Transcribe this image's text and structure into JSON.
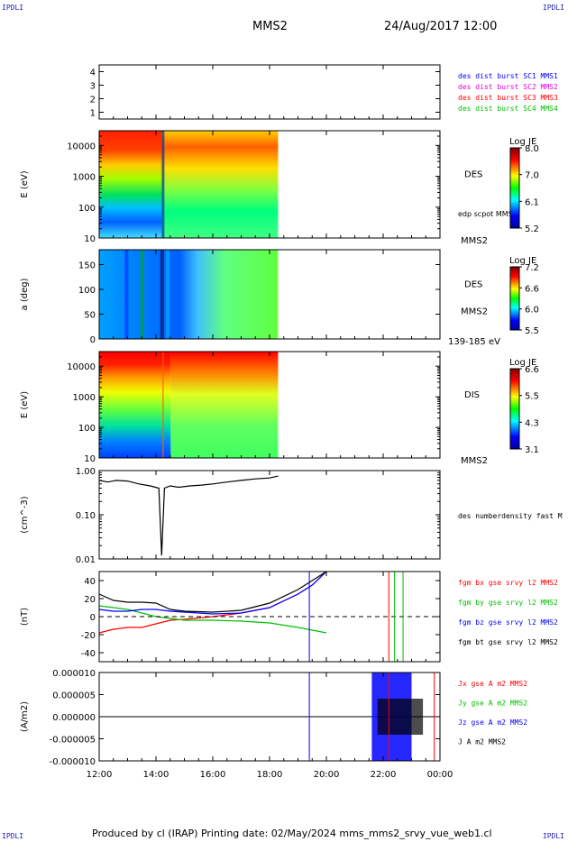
{
  "header": {
    "corner_left_top": "IPDLI",
    "corner_right_top": "IPDLI",
    "corner_left_bottom": "IPDLI",
    "corner_right_bottom": "IPDLI",
    "spacecraft": "MMS2",
    "datetime": "24/Aug/2017 12:00"
  },
  "footer": {
    "text": "Produced by cl (IRAP)   Printing date: 02/May/2024   mms_mms2_srvy_vue_web1.cl"
  },
  "colors": {
    "blue": "#0000ff",
    "magenta": "#e000e0",
    "red": "#ff0000",
    "green": "#00c000",
    "black": "#000000"
  },
  "x_axis": {
    "ticks": [
      {
        "label": "12:00",
        "hours": 0
      },
      {
        "label": "14:00",
        "hours": 2
      },
      {
        "label": "16:00",
        "hours": 4
      },
      {
        "label": "18:00",
        "hours": 6
      },
      {
        "label": "20:00",
        "hours": 8
      },
      {
        "label": "22:00",
        "hours": 10
      },
      {
        "label": "00:00",
        "hours": 12
      }
    ]
  },
  "panels": [
    {
      "id": "sc",
      "ticks": [
        {
          "v": 1,
          "label": "1"
        },
        {
          "v": 2,
          "label": "2"
        },
        {
          "v": 3,
          "label": "3"
        },
        {
          "v": 4,
          "label": "4"
        }
      ],
      "ylim": [
        0.5,
        4.5
      ],
      "legend": [
        {
          "text": "des dist burst SC1 MMS1",
          "color": "blue"
        },
        {
          "text": "des dist burst SC2 MMS2",
          "color": "magenta"
        },
        {
          "text": "des dist burst SC3 MMS3",
          "color": "red"
        },
        {
          "text": "des dist burst SC4 MMS4",
          "color": "green"
        }
      ]
    },
    {
      "id": "des_e",
      "ylabel": "E (eV)",
      "scale": "log",
      "ticks": [
        {
          "v": 10,
          "label": "10"
        },
        {
          "v": 100,
          "label": "100"
        },
        {
          "v": 1000,
          "label": "1000"
        },
        {
          "v": 10000,
          "label": "10000"
        }
      ],
      "ylim": [
        10,
        30000
      ],
      "species": "DES",
      "sub_label": "edp scpot MMS2",
      "bottom_label": "MMS2",
      "colorbar": {
        "title": "Log JE",
        "ticks": [
          "8.0",
          "7.0",
          "6.1",
          "5.2"
        ]
      }
    },
    {
      "id": "des_pa",
      "ylabel": "a (deg)",
      "ticks": [
        {
          "v": 0,
          "label": "0"
        },
        {
          "v": 50,
          "label": "50"
        },
        {
          "v": 100,
          "label": "100"
        },
        {
          "v": 150,
          "label": "150"
        }
      ],
      "ylim": [
        0,
        180
      ],
      "species": "DES",
      "sub_label": "MMS2",
      "bottom_label": "139-185 eV",
      "colorbar": {
        "title": "Log JE",
        "ticks": [
          "7.2",
          "6.6",
          "6.0",
          "5.5"
        ]
      }
    },
    {
      "id": "dis_e",
      "ylabel": "E (eV)",
      "scale": "log",
      "ticks": [
        {
          "v": 10,
          "label": "10"
        },
        {
          "v": 100,
          "label": "100"
        },
        {
          "v": 1000,
          "label": "1000"
        },
        {
          "v": 10000,
          "label": "10000"
        }
      ],
      "ylim": [
        10,
        30000
      ],
      "species": "DIS",
      "bottom_label": "MMS2",
      "colorbar": {
        "title": "Log JE",
        "ticks": [
          "6.6",
          "5.5",
          "4.3",
          "3.1"
        ]
      }
    },
    {
      "id": "density",
      "ylabel": "(cm^-3)",
      "scale": "log",
      "ticks": [
        {
          "v": 0.01,
          "label": "0.01"
        },
        {
          "v": 0.1,
          "label": "0.10"
        },
        {
          "v": 1,
          "label": "1.00"
        }
      ],
      "ylim": [
        0.01,
        1
      ],
      "legend": [
        {
          "text": "des numberdensity fast M",
          "color": "black"
        }
      ]
    },
    {
      "id": "fgm",
      "ylabel": "(nT)",
      "ticks": [
        {
          "v": -40,
          "label": "-40"
        },
        {
          "v": -20,
          "label": "-20"
        },
        {
          "v": 0,
          "label": "0"
        },
        {
          "v": 20,
          "label": "20"
        },
        {
          "v": 40,
          "label": "40"
        }
      ],
      "ylim": [
        -50,
        50
      ],
      "legend": [
        {
          "text": "fgm bx gse srvy l2 MMS2",
          "color": "red"
        },
        {
          "text": "fgm by gse srvy l2 MMS2",
          "color": "green"
        },
        {
          "text": "fgm bz gse srvy l2 MMS2",
          "color": "blue"
        },
        {
          "text": "fgm bt gse srvy l2 MMS2",
          "color": "black"
        }
      ]
    },
    {
      "id": "current",
      "ylabel": "(A/m2)",
      "ticks": [
        {
          "v": -1e-05,
          "label": "-0.000010"
        },
        {
          "v": -5e-06,
          "label": "-0.000005"
        },
        {
          "v": 0,
          "label": "0.000000"
        },
        {
          "v": 5e-06,
          "label": "0.000005"
        },
        {
          "v": 1e-05,
          "label": "0.000010"
        }
      ],
      "ylim": [
        -1e-05,
        1e-05
      ],
      "legend": [
        {
          "text": "Jx gse A m2 MMS2",
          "color": "red"
        },
        {
          "text": "Jy gse A m2 MMS2",
          "color": "green"
        },
        {
          "text": "Jz gse A m2 MMS2",
          "color": "blue"
        },
        {
          "text": "J A m2 MMS2",
          "color": "black"
        }
      ]
    }
  ],
  "chart_data": [
    {
      "type": "line",
      "panel": "density",
      "x_hours": [
        0,
        0.3,
        0.6,
        1.0,
        1.4,
        1.8,
        2.1,
        2.2,
        2.3,
        2.5,
        2.8,
        3.2,
        3.6,
        4.0,
        4.5,
        5.0,
        5.5,
        6.0,
        6.3
      ],
      "values": [
        0.6,
        0.55,
        0.6,
        0.58,
        0.5,
        0.45,
        0.4,
        0.012,
        0.4,
        0.45,
        0.42,
        0.45,
        0.47,
        0.5,
        0.55,
        0.6,
        0.65,
        0.68,
        0.75
      ]
    },
    {
      "type": "line",
      "panel": "fgm",
      "x_hours": [
        0,
        0.5,
        1.0,
        1.5,
        2.0,
        2.5,
        3.0,
        4.0,
        5.0,
        6.0,
        7.0,
        7.5,
        8.0
      ],
      "series": [
        {
          "name": "fgm bx gse srvy l2 MMS2",
          "values": [
            -18,
            -14,
            -12,
            -12,
            -8,
            -4,
            -3,
            0,
            4,
            10,
            25,
            35,
            50
          ]
        },
        {
          "name": "fgm by gse srvy l2 MMS2",
          "values": [
            12,
            10,
            8,
            4,
            0,
            -2,
            -4,
            -4,
            -5,
            -7,
            -12,
            -15,
            -18
          ]
        },
        {
          "name": "fgm bz gse srvy l2 MMS2",
          "values": [
            8,
            6,
            6,
            8,
            8,
            6,
            5,
            3,
            4,
            10,
            25,
            35,
            50
          ]
        },
        {
          "name": "fgm bt gse srvy l2 MMS2",
          "values": [
            25,
            18,
            16,
            16,
            15,
            8,
            6,
            5,
            7,
            15,
            30,
            40,
            50
          ]
        }
      ]
    },
    {
      "type": "heatmap",
      "panel": "des_e",
      "x_range_hours": [
        0,
        6.3
      ],
      "colorbar_range": [
        5.2,
        8.0
      ]
    },
    {
      "type": "heatmap",
      "panel": "des_pa",
      "x_range_hours": [
        0,
        6.3
      ],
      "colorbar_range": [
        5.5,
        7.2
      ]
    },
    {
      "type": "heatmap",
      "panel": "dis_e",
      "x_range_hours": [
        0,
        6.3
      ],
      "colorbar_range": [
        3.1,
        6.6
      ]
    }
  ]
}
